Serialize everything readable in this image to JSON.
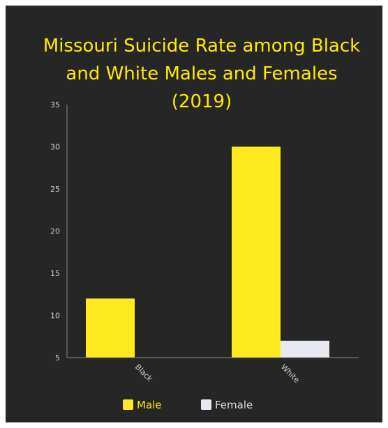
{
  "chart_data": {
    "type": "bar",
    "title": "Missouri Suicide Rate among Black and White Males and Females (2019)",
    "title_lines": [
      "Missouri Suicide Rate among Black",
      "and White Males and Females",
      "(2019)"
    ],
    "categories": [
      "Black",
      "White"
    ],
    "series": [
      {
        "name": "Male",
        "values": [
          12,
          30
        ],
        "color": "#ffea1f"
      },
      {
        "name": "Female",
        "values": [
          null,
          7
        ],
        "color": "#e6e9ef"
      }
    ],
    "ylim": [
      5,
      35
    ],
    "yticks": [
      "5",
      "10",
      "15",
      "20",
      "25",
      "30",
      "35"
    ],
    "legend": "bottom",
    "grid": false
  },
  "colors": {
    "background": "#262626",
    "title": "#ffea00",
    "axis": "#888888"
  }
}
